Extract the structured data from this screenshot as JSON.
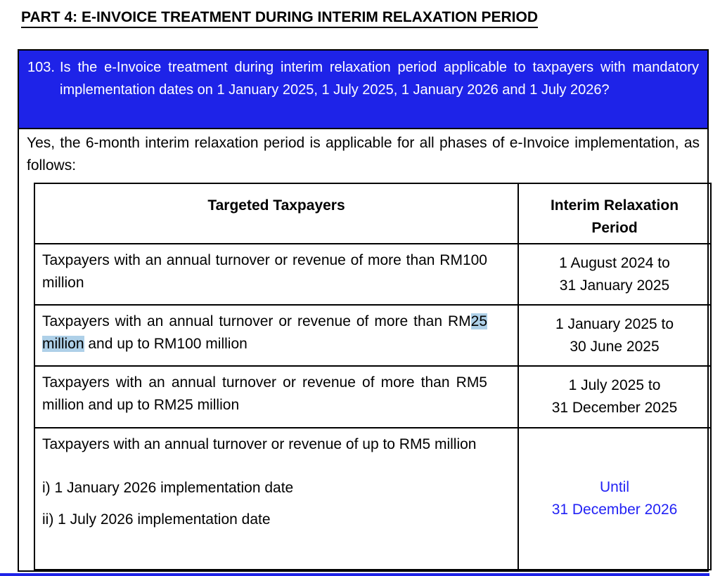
{
  "page": {
    "title": "PART 4: E-INVOICE TREATMENT DURING INTERIM RELAXATION PERIOD"
  },
  "question": {
    "number": "103.",
    "text": "Is the e-Invoice treatment during interim relaxation period applicable to taxpayers with mandatory implementation dates on 1 January 2025, 1 July 2025, 1 January 2026 and 1 July 2026?"
  },
  "answer": {
    "intro": "Yes, the 6-month interim relaxation period is applicable for all phases of e-Invoice implementation, as follows:"
  },
  "table": {
    "headers": [
      "Targeted Taxpayers",
      "Interim Relaxation\nPeriod"
    ],
    "rows": [
      {
        "taxpayer_paragraphs": [
          [
            {
              "text": "Taxpayers with an annual turnover or revenue of more than RM100 million"
            }
          ]
        ],
        "period": {
          "text": "1 August 2024 to\n31 January 2025",
          "blue": false
        }
      },
      {
        "taxpayer_paragraphs": [
          [
            {
              "text": "Taxpayers with an annual turnover or revenue of more than RM"
            },
            {
              "text": "25 million",
              "highlight": true
            },
            {
              "text": " and up to RM100 million"
            }
          ]
        ],
        "period": {
          "text": "1 January 2025 to\n30 June 2025",
          "blue": false
        }
      },
      {
        "taxpayer_paragraphs": [
          [
            {
              "text": "Taxpayers with an annual turnover or revenue of more than RM5 million and up to RM25 million"
            }
          ]
        ],
        "period": {
          "text": "1 July 2025 to\n31 December 2025",
          "blue": false
        }
      },
      {
        "taxpayer_paragraphs": [
          [
            {
              "text": "Taxpayers with an annual turnover or revenue of up to RM5 million"
            }
          ],
          [
            {
              "text": "i) 1 January 2026 implementation date"
            }
          ],
          [
            {
              "text": "ii) 1 July 2026 implementation date"
            }
          ]
        ],
        "period": {
          "text": "Until\n31 December 2026",
          "blue": true
        }
      }
    ]
  },
  "colors": {
    "question_background": "#1e23e8",
    "period_blue_text": "#2222f5",
    "selection_highlight": "#aed0e8",
    "border": "#000000"
  }
}
